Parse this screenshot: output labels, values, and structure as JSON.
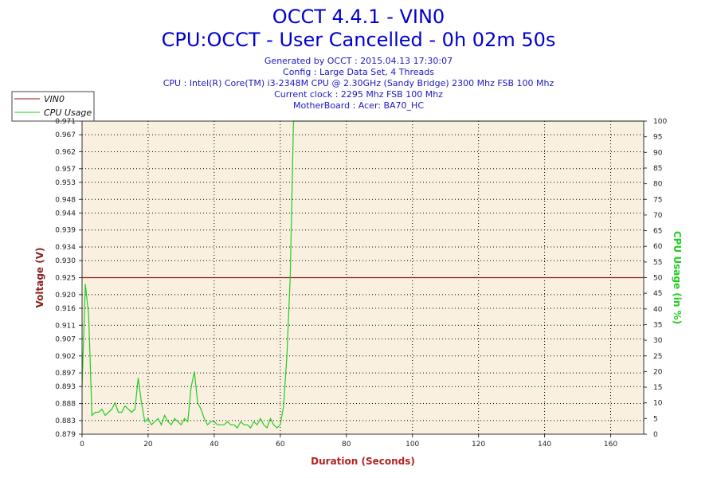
{
  "header": {
    "title_line1": "OCCT 4.4.1 - VIN0",
    "title_line2": "CPU:OCCT - User Cancelled - 0h 02m 50s",
    "info": [
      "Generated by OCCT : 2015.04.13 17:30:07",
      "Config : Large Data Set, 4 Threads",
      "CPU : Intel(R) Core(TM) i3-2348M CPU @ 2.30GHz (Sandy Bridge) 2300 Mhz FSB 100 Mhz",
      "Current clock : 2295 Mhz FSB 100 Mhz",
      "MotherBoard : Acer: BA70_HC"
    ]
  },
  "colors": {
    "title": "#0000cc",
    "info": "#1a1ac0",
    "plot_background": "#faf0e0",
    "voltage_series": "#8b1a1a",
    "cpu_series": "#22cc22",
    "left_axis_label": "#8b2222",
    "right_axis_label": "#22cc22",
    "x_axis_label": "#b22222"
  },
  "chart_data": {
    "type": "line",
    "xlabel": "Duration (Seconds)",
    "ylabel_left": "Voltage (V)",
    "ylabel_right": "CPU Usage (in %)",
    "xlim": [
      0,
      170
    ],
    "x_ticks": [
      "0",
      "20",
      "40",
      "60",
      "80",
      "100",
      "120",
      "140",
      "160"
    ],
    "x_tick_values": [
      0,
      20,
      40,
      60,
      80,
      100,
      120,
      140,
      160
    ],
    "ylim_left": [
      0.879,
      0.971
    ],
    "y_left_ticks": [
      "0.879",
      "0.883",
      "0.888",
      "0.893",
      "0.897",
      "0.902",
      "0.907",
      "0.911",
      "0.916",
      "0.920",
      "0.925",
      "0.930",
      "0.934",
      "0.939",
      "0.944",
      "0.948",
      "0.953",
      "0.957",
      "0.962",
      "0.967",
      "0.971"
    ],
    "y_left_tick_values": [
      0.879,
      0.883,
      0.888,
      0.893,
      0.897,
      0.902,
      0.907,
      0.911,
      0.916,
      0.92,
      0.925,
      0.93,
      0.934,
      0.939,
      0.944,
      0.948,
      0.953,
      0.957,
      0.962,
      0.967,
      0.971
    ],
    "ylim_right": [
      0,
      100
    ],
    "y_right_ticks": [
      "0",
      "5",
      "10",
      "15",
      "20",
      "25",
      "30",
      "35",
      "40",
      "45",
      "50",
      "55",
      "60",
      "65",
      "70",
      "75",
      "80",
      "85",
      "90",
      "95",
      "100"
    ],
    "y_right_tick_values": [
      0,
      5,
      10,
      15,
      20,
      25,
      30,
      35,
      40,
      45,
      50,
      55,
      60,
      65,
      70,
      75,
      80,
      85,
      90,
      95,
      100
    ],
    "grid": true,
    "legend_position": "top-left",
    "series": [
      {
        "name": "VIN0",
        "axis": "left",
        "x": [
          0,
          170
        ],
        "values": [
          0.925,
          0.925
        ]
      },
      {
        "name": "CPU Usage",
        "axis": "right",
        "x": [
          0,
          1,
          2,
          3,
          4,
          5,
          6,
          7,
          8,
          9,
          10,
          11,
          12,
          13,
          14,
          15,
          16,
          17,
          18,
          19,
          20,
          21,
          22,
          23,
          24,
          25,
          26,
          27,
          28,
          29,
          30,
          31,
          32,
          33,
          34,
          35,
          36,
          37,
          38,
          39,
          40,
          41,
          42,
          43,
          44,
          45,
          46,
          47,
          48,
          49,
          50,
          51,
          52,
          53,
          54,
          55,
          56,
          57,
          58,
          59,
          60,
          61,
          62,
          63,
          64,
          65,
          70,
          80,
          100,
          120,
          140,
          160,
          170
        ],
        "values": [
          15,
          48,
          38,
          6,
          7,
          7,
          8,
          6,
          7,
          8,
          10,
          7,
          7,
          9,
          8,
          7,
          8,
          18,
          10,
          4,
          5,
          3,
          4,
          5,
          3,
          6,
          4,
          3,
          5,
          4,
          3,
          5,
          4,
          15,
          20,
          10,
          8,
          5,
          3,
          4,
          4,
          3,
          3,
          3,
          4,
          3,
          3,
          2,
          4,
          3,
          3,
          2,
          4,
          3,
          5,
          3,
          2,
          5,
          3,
          2,
          3,
          9,
          25,
          50,
          100,
          100,
          100,
          100,
          100,
          100,
          100,
          100,
          100
        ]
      }
    ]
  }
}
